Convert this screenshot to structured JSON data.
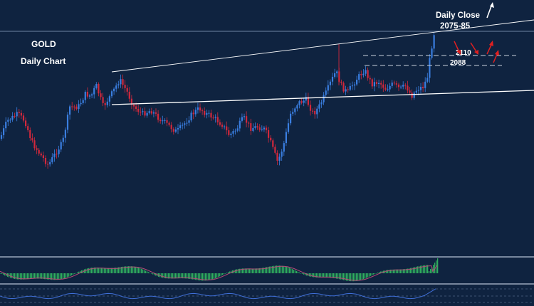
{
  "colors": {
    "background": "#0f2340",
    "bull_candle": "#3a7ee0",
    "bear_candle": "#d2283c",
    "trendline": "#ffffff",
    "histogram": "#2fae5e",
    "signal_line": "#b84a7a",
    "oscillator_line": "#3f6fd8",
    "arrow_red": "#e02020",
    "arrow_white": "#ffffff"
  },
  "annotations": {
    "instrument": "GOLD",
    "timeframe": "Daily Chart",
    "daily_close_label": "Daily Close",
    "daily_close_range": "2075-85",
    "level_upper": "2110",
    "level_lower": "2088"
  },
  "chart_data": {
    "type": "candlestick",
    "title": "GOLD",
    "subtitle": "Daily Chart",
    "price_levels": [
      {
        "label": "2110",
        "value": 2110
      },
      {
        "label": "2088",
        "value": 2088
      }
    ],
    "daily_close_range": [
      2075,
      2085
    ],
    "grid": false,
    "panels": [
      "price",
      "macd-histogram",
      "oscillator"
    ]
  }
}
